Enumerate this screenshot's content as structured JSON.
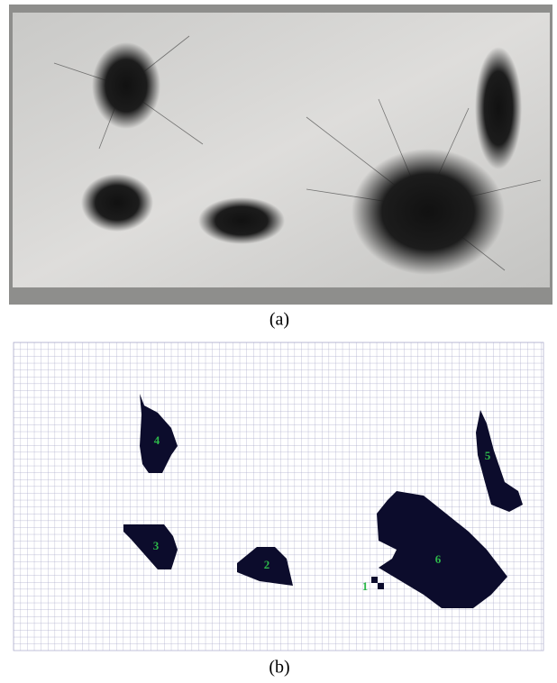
{
  "figure": {
    "panel_a": {
      "caption": "(a)"
    },
    "panel_b": {
      "caption": "(b)",
      "regions": [
        {
          "label": "1"
        },
        {
          "label": "2"
        },
        {
          "label": "3"
        },
        {
          "label": "4"
        },
        {
          "label": "5"
        },
        {
          "label": "6"
        }
      ]
    }
  }
}
